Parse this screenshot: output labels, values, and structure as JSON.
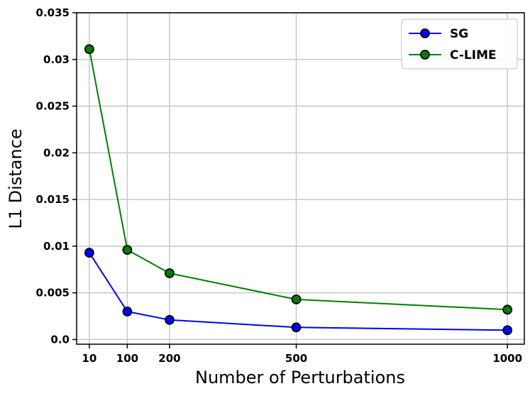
{
  "chart_data": {
    "type": "line",
    "title": "",
    "xlabel": "Number of Perturbations",
    "ylabel": "L1 Distance",
    "x": [
      10,
      100,
      200,
      500,
      1000
    ],
    "xticks": [
      "10",
      "100",
      "200",
      "500",
      "1000"
    ],
    "xlim": [
      -20,
      1040
    ],
    "ylim": [
      -0.0005,
      0.035
    ],
    "yticks": [
      "0.0",
      "0.005",
      "0.01",
      "0.015",
      "0.02",
      "0.025",
      "0.03",
      "0.035"
    ],
    "grid": true,
    "legend_position": "top-right",
    "series": [
      {
        "name": "SG",
        "color": "#0000ff",
        "values": [
          0.0093,
          0.003,
          0.0021,
          0.0013,
          0.001
        ]
      },
      {
        "name": "C-LIME",
        "color": "#007f00",
        "values": [
          0.0311,
          0.0096,
          0.0071,
          0.0043,
          0.0032
        ]
      }
    ]
  }
}
